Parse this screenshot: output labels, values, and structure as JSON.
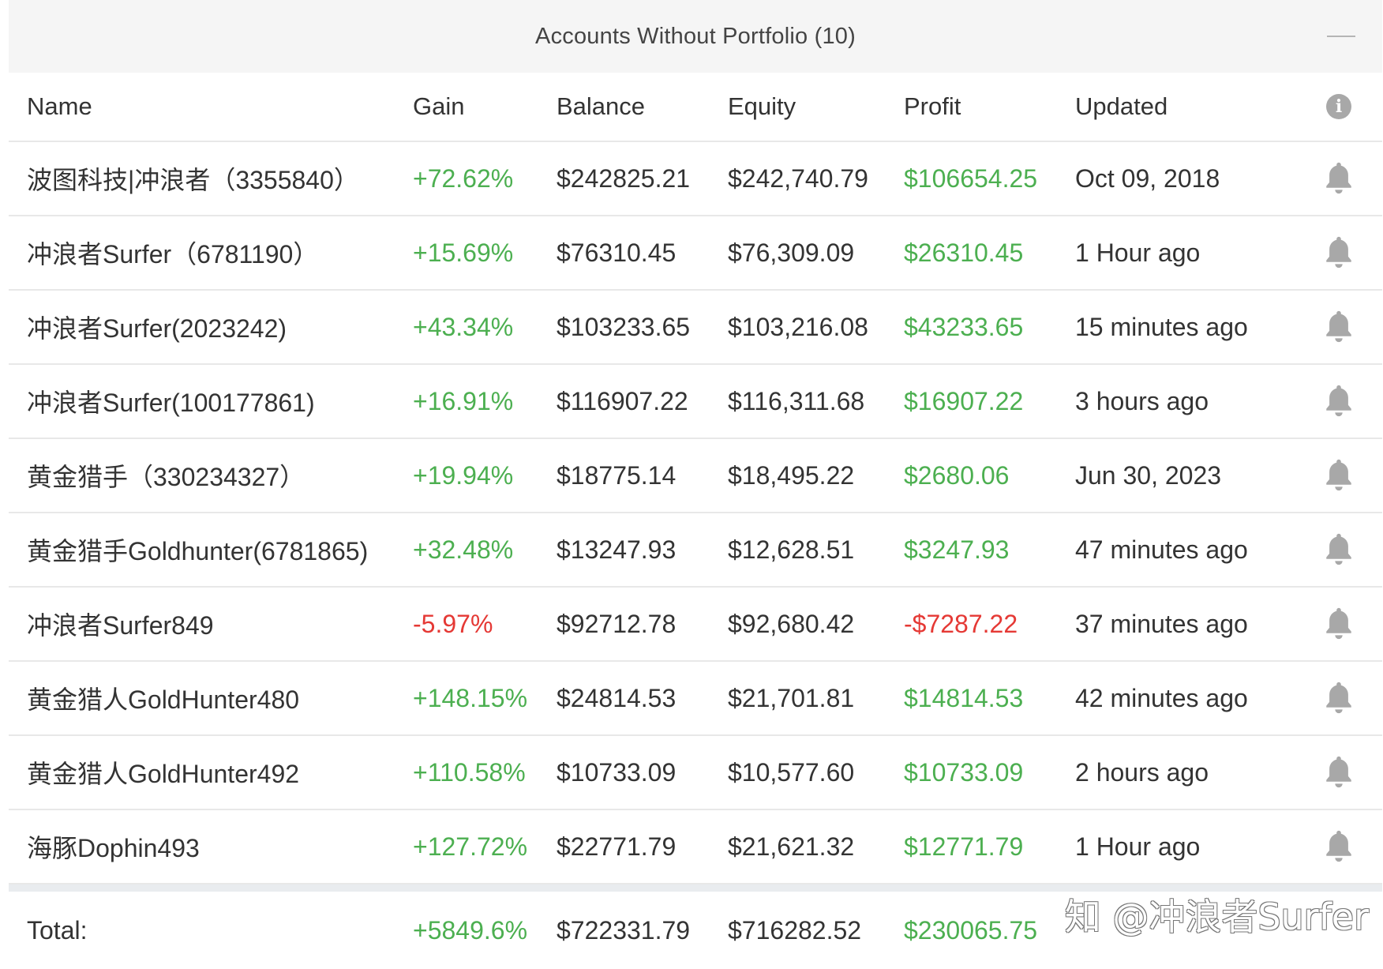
{
  "panel": {
    "title": "Accounts Without Portfolio (10)",
    "collapse_icon": "minus-icon"
  },
  "columns": {
    "name": "Name",
    "gain": "Gain",
    "balance": "Balance",
    "equity": "Equity",
    "profit": "Profit",
    "updated": "Updated",
    "info_icon": "info-icon",
    "info_glyph": "i"
  },
  "rows": [
    {
      "name": "波图科技|冲浪者（3355840）",
      "gain": "+72.62%",
      "balance": "$242825.21",
      "equity": "$242,740.79",
      "profit": "$106654.25",
      "updated": "Oct 09, 2018",
      "sign": "pos"
    },
    {
      "name": "冲浪者Surfer（6781190）",
      "gain": "+15.69%",
      "balance": "$76310.45",
      "equity": "$76,309.09",
      "profit": "$26310.45",
      "updated": "1 Hour ago",
      "sign": "pos"
    },
    {
      "name": "冲浪者Surfer(2023242)",
      "gain": "+43.34%",
      "balance": "$103233.65",
      "equity": "$103,216.08",
      "profit": "$43233.65",
      "updated": "15 minutes ago",
      "sign": "pos"
    },
    {
      "name": "冲浪者Surfer(100177861)",
      "gain": "+16.91%",
      "balance": "$116907.22",
      "equity": "$116,311.68",
      "profit": "$16907.22",
      "updated": "3 hours ago",
      "sign": "pos"
    },
    {
      "name": "黄金猎手（330234327）",
      "gain": "+19.94%",
      "balance": "$18775.14",
      "equity": "$18,495.22",
      "profit": "$2680.06",
      "updated": "Jun 30, 2023",
      "sign": "pos"
    },
    {
      "name": "黄金猎手Goldhunter(6781865)",
      "gain": "+32.48%",
      "balance": "$13247.93",
      "equity": "$12,628.51",
      "profit": "$3247.93",
      "updated": "47 minutes ago",
      "sign": "pos"
    },
    {
      "name": "冲浪者Surfer849",
      "gain": "-5.97%",
      "balance": "$92712.78",
      "equity": "$92,680.42",
      "profit": "-$7287.22",
      "updated": "37 minutes ago",
      "sign": "neg"
    },
    {
      "name": "黄金猎人GoldHunter480",
      "gain": "+148.15%",
      "balance": "$24814.53",
      "equity": "$21,701.81",
      "profit": "$14814.53",
      "updated": "42 minutes ago",
      "sign": "pos"
    },
    {
      "name": "黄金猎人GoldHunter492",
      "gain": "+110.58%",
      "balance": "$10733.09",
      "equity": "$10,577.60",
      "profit": "$10733.09",
      "updated": "2 hours ago",
      "sign": "pos"
    },
    {
      "name": "海豚Dophin493",
      "gain": "+127.72%",
      "balance": "$22771.79",
      "equity": "$21,621.32",
      "profit": "$12771.79",
      "updated": "1 Hour ago",
      "sign": "pos"
    }
  ],
  "row_icon": "bell-icon",
  "total": {
    "label": "Total:",
    "gain": "+5849.6%",
    "balance": "$722331.79",
    "equity": "$716282.52",
    "profit": "$230065.75"
  },
  "watermark": "知 @冲浪者Surfer",
  "colors": {
    "positive": "#4caf50",
    "negative": "#e53935",
    "header_bg": "#f5f5f5",
    "icon_gray": "#a8a8a8"
  }
}
